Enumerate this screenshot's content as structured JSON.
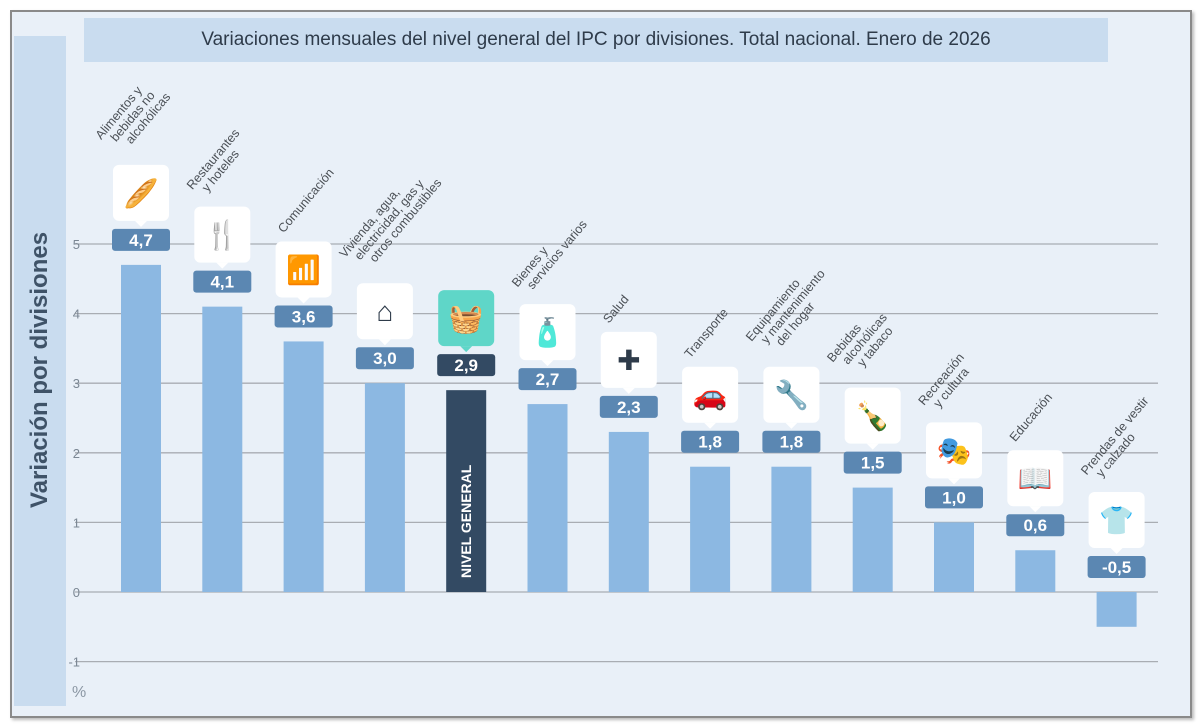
{
  "chart_data": {
    "type": "bar",
    "title": "Variaciones mensuales del nivel general del IPC por divisiones. Total nacional. Enero de 2026",
    "ylabel": "Variación por divisiones",
    "yunit": "%",
    "ylim": [
      -1,
      5
    ],
    "yticks": [
      -1,
      0,
      1,
      2,
      3,
      4,
      5
    ],
    "grid": true,
    "categories": [
      "Alimentos y bebidas no alcohólicas",
      "Restaurantes y hoteles",
      "Comunicación",
      "Vivienda, agua, electricidad, gas y otros combustibles",
      "NIVEL GENERAL",
      "Bienes y servicios varios",
      "Salud",
      "Transporte",
      "Equipamiento y mantenimiento del hogar",
      "Bebidas alcohólicas y tabaco",
      "Recreación y cultura",
      "Educación",
      "Prendas de vestir y calzado"
    ],
    "category_label_lines": [
      [
        "Alimentos y",
        "bebidas no",
        "alcohólicas"
      ],
      [
        "Restaurantes",
        "y hoteles"
      ],
      [
        "Comunicación"
      ],
      [
        "Vivienda, agua,",
        "electricidad, gas y",
        "otros combustibles"
      ],
      [],
      [
        "Bienes y",
        "servicios varios"
      ],
      [
        "Salud"
      ],
      [
        "Transporte"
      ],
      [
        "Equipamiento",
        "y mantenimiento",
        "del hogar"
      ],
      [
        "Bebidas",
        "alcohólicas",
        "y tabaco"
      ],
      [
        "Recreación",
        "y cultura"
      ],
      [
        "Educación"
      ],
      [
        "Prendas de vestir",
        "y calzado"
      ]
    ],
    "values": [
      4.7,
      4.1,
      3.6,
      3.0,
      2.9,
      2.7,
      2.3,
      1.8,
      1.8,
      1.5,
      1.0,
      0.6,
      -0.5
    ],
    "value_labels": [
      "4,7",
      "4,1",
      "3,6",
      "3,0",
      "2,9",
      "2,7",
      "2,3",
      "1,8",
      "1,8",
      "1,5",
      "1,0",
      "0,6",
      "-0,5"
    ],
    "icons": [
      "food-basket-icon",
      "restaurant-hotel-icon",
      "wifi-icon",
      "house-energy-icon",
      "shopping-basket-icon",
      "personal-care-icon",
      "health-cross-icon",
      "car-repair-icon",
      "tools-icon",
      "bottle-icon",
      "theater-masks-icon",
      "book-icon",
      "tshirt-icon"
    ],
    "highlight_index": 4,
    "colors": {
      "bar": "#8cb8e2",
      "highlight_bar": "#334a63",
      "badge": "#5b87b2",
      "highlight_badge": "#334a63",
      "highlight_icon_bg": "#5fd6c8",
      "icon": "#2e3b4a"
    }
  }
}
